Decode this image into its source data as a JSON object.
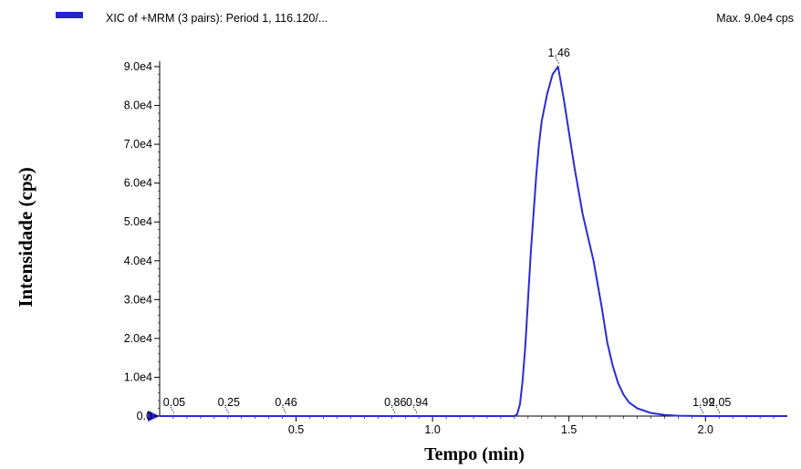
{
  "header": {
    "legend_label": "XIC of +MRM (3 pairs): Period 1, 116.120/...",
    "max_label": "Max. 9.0e4 cps"
  },
  "colors": {
    "series": "#2b2bd8",
    "legend_swatch": "#2424c8",
    "axis": "#000000"
  },
  "chart_data": {
    "type": "line",
    "title": "",
    "xlabel": "Tempo (min)",
    "ylabel": "Intensidade (cps)",
    "xlim": [
      0.0,
      2.3
    ],
    "ylim": [
      0,
      90000
    ],
    "x_ticks": [
      {
        "value": 0.5,
        "label": "0.5"
      },
      {
        "value": 1.0,
        "label": "1.0"
      },
      {
        "value": 1.5,
        "label": "1.5"
      },
      {
        "value": 2.0,
        "label": "2.0"
      }
    ],
    "y_ticks": [
      {
        "value": 0,
        "label": "0.0"
      },
      {
        "value": 10000,
        "label": "1.0e4"
      },
      {
        "value": 20000,
        "label": "2.0e4"
      },
      {
        "value": 30000,
        "label": "3.0e4"
      },
      {
        "value": 40000,
        "label": "4.0e4"
      },
      {
        "value": 50000,
        "label": "5.0e4"
      },
      {
        "value": 60000,
        "label": "6.0e4"
      },
      {
        "value": 70000,
        "label": "7.0e4"
      },
      {
        "value": 80000,
        "label": "8.0e4"
      },
      {
        "value": 90000,
        "label": "9.0e4"
      }
    ],
    "peak_labels": [
      {
        "x": 0.05,
        "label": "0.05"
      },
      {
        "x": 0.25,
        "label": "0.25"
      },
      {
        "x": 0.46,
        "label": "0.46"
      },
      {
        "x": 0.86,
        "label": "0.86"
      },
      {
        "x": 0.94,
        "label": "0.94"
      },
      {
        "x": 1.46,
        "label": "1.46"
      },
      {
        "x": 1.99,
        "label": "1.99"
      },
      {
        "x": 2.05,
        "label": "2.05"
      }
    ],
    "series": [
      {
        "x": [
          0.0,
          0.3,
          0.6,
          0.9,
          1.2,
          1.3,
          1.31,
          1.32,
          1.33,
          1.34,
          1.35,
          1.36,
          1.37,
          1.38,
          1.39,
          1.4,
          1.42,
          1.44,
          1.46,
          1.48,
          1.5,
          1.52,
          1.54,
          1.55,
          1.57,
          1.59,
          1.6,
          1.62,
          1.64,
          1.66,
          1.68,
          1.7,
          1.72,
          1.75,
          1.8,
          1.85,
          1.9,
          2.0,
          2.1,
          2.2,
          2.3
        ],
        "y": [
          0,
          0,
          0,
          0,
          0,
          0,
          500,
          3000,
          9000,
          18000,
          30000,
          42000,
          52000,
          62000,
          70000,
          76000,
          83000,
          88000,
          90000,
          82000,
          73000,
          64000,
          56000,
          52000,
          46000,
          40000,
          36000,
          28000,
          19000,
          13000,
          8500,
          5500,
          3500,
          2000,
          800,
          300,
          100,
          0,
          0,
          0,
          0
        ]
      }
    ]
  }
}
